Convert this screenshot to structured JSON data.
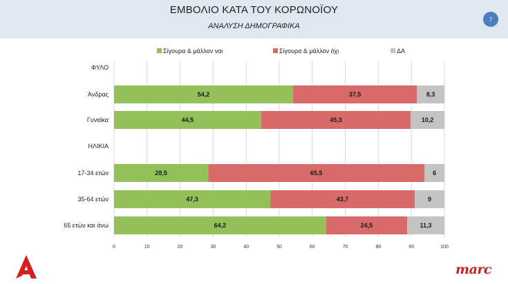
{
  "header": {
    "title": "ΕΜΒΟΛΙΟ ΚΑΤΑ ΤΟΥ ΚΟΡΩΝΟΪΟΥ",
    "subtitle": "ΑΝΑΛΥΣΗ ΔΗΜΟΓΡΑΦΙΚΑ",
    "page_number": "7"
  },
  "logos": {
    "right_text": "marc"
  },
  "colors": {
    "yes": "#93c058",
    "no": "#d96a6a",
    "dk": "#c3c3c3",
    "grid": "#d9d9d9"
  },
  "chart_data": {
    "type": "bar",
    "orientation": "horizontal",
    "stacked": true,
    "title": "",
    "xlabel": "",
    "ylabel": "",
    "xlim": [
      0,
      100
    ],
    "xticks": [
      "0",
      "10",
      "20",
      "30",
      "40",
      "50",
      "60",
      "70",
      "80",
      "90",
      "100"
    ],
    "grid": true,
    "legend_position": "top",
    "categories": [
      "ΦΥΛΟ",
      "Άνδρας",
      "Γυναίκα",
      "ΗΛΙΚΙΑ",
      "17-34 ετών",
      "35-64 ετών",
      "65 ετών και άνω"
    ],
    "series": [
      {
        "name": "Σίγουρα & μάλλον ναι",
        "color": "#93c058",
        "values": [
          null,
          54.2,
          44.5,
          null,
          28.5,
          47.3,
          64.2
        ],
        "labels": [
          "",
          "54,2",
          "44,5",
          "",
          "28,5",
          "47,3",
          "64,2"
        ]
      },
      {
        "name": "Σίγουρα & μάλλον όχι",
        "color": "#d96a6a",
        "values": [
          null,
          37.5,
          45.3,
          null,
          65.5,
          43.7,
          24.5
        ],
        "labels": [
          "",
          "37,5",
          "45,3",
          "",
          "65,5",
          "43,7",
          "24,5"
        ]
      },
      {
        "name": "ΔΑ",
        "color": "#c3c3c3",
        "values": [
          null,
          8.3,
          10.2,
          null,
          6,
          9,
          11.3
        ],
        "labels": [
          "",
          "8,3",
          "10,2",
          "",
          "6",
          "9",
          "11,3"
        ]
      }
    ]
  }
}
